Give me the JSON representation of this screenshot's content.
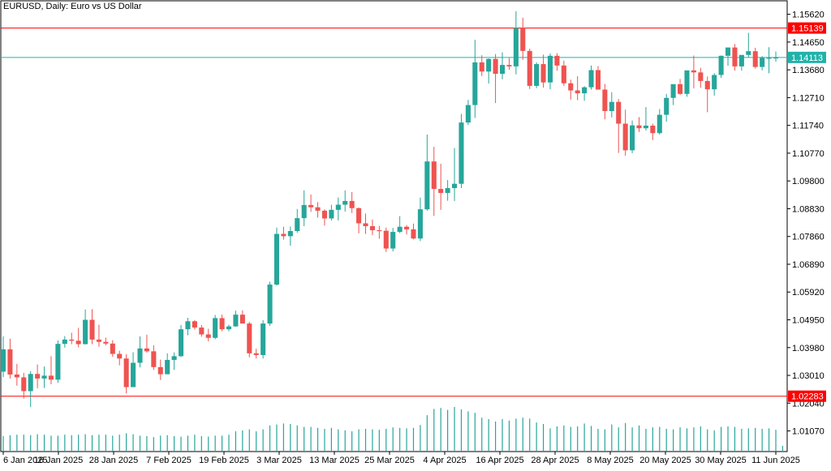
{
  "chart_data": {
    "type": "candlestick",
    "title": "EURUSD, Daily:  Euro vs US Dollar",
    "price_axis": {
      "ticks": [
        "1.15620",
        "1.14650",
        "1.13680",
        "1.12710",
        "1.11740",
        "1.10770",
        "1.09800",
        "1.08830",
        "1.07860",
        "1.06890",
        "1.05920",
        "1.04950",
        "1.03980",
        "1.03010",
        "1.02040",
        "1.01070"
      ],
      "range": [
        1.0035,
        1.1609
      ]
    },
    "date_axis": {
      "labels": [
        "6 Jan 2025",
        "16 Jan 2025",
        "28 Jan 2025",
        "7 Feb 2025",
        "19 Feb 2025",
        "3 Mar 2025",
        "13 Mar 2025",
        "25 Mar 2025",
        "4 Apr 2025",
        "16 Apr 2025",
        "28 Apr 2025",
        "8 May 2025",
        "20 May 2025",
        "30 May 2025",
        "11 Jun 2025"
      ]
    },
    "levels": [
      {
        "label": "1.15139",
        "value": 1.15139,
        "color": "#ff0000"
      },
      {
        "label": "1.14113",
        "value": 1.14113,
        "color": "#20b2aa"
      },
      {
        "label": "1.02283",
        "value": 1.02283,
        "color": "#ff0000"
      }
    ],
    "colors": {
      "up": "#26a69a",
      "down": "#ef5350",
      "volume": "#26a69a",
      "axis": "#000000"
    },
    "candles": [
      [
        1.0314,
        1.0437,
        1.0295,
        1.0392
      ],
      [
        1.0392,
        1.0429,
        1.029,
        1.0304
      ],
      [
        1.0304,
        1.0341,
        1.0265,
        1.0294
      ],
      [
        1.0294,
        1.031,
        1.022,
        1.0246
      ],
      [
        1.0246,
        1.0316,
        1.019,
        1.0306
      ],
      [
        1.0306,
        1.0339,
        1.0256,
        1.029
      ],
      [
        1.029,
        1.0332,
        1.0257,
        1.03
      ],
      [
        1.03,
        1.0368,
        1.027,
        1.0286
      ],
      [
        1.0286,
        1.0423,
        1.0275,
        1.0411
      ],
      [
        1.0411,
        1.0438,
        1.0398,
        1.0426
      ],
      [
        1.0426,
        1.045,
        1.041,
        1.0422
      ],
      [
        1.0422,
        1.0467,
        1.0399,
        1.041
      ],
      [
        1.041,
        1.0531,
        1.0409,
        1.0495
      ],
      [
        1.0495,
        1.0532,
        1.041,
        1.0426
      ],
      [
        1.0426,
        1.0478,
        1.0401,
        1.0418
      ],
      [
        1.0418,
        1.0433,
        1.0406,
        1.0412
      ],
      [
        1.0412,
        1.0424,
        1.0366,
        1.0376
      ],
      [
        1.0376,
        1.0387,
        1.0336,
        1.036
      ],
      [
        1.036,
        1.0375,
        1.0238,
        1.026
      ],
      [
        1.026,
        1.0382,
        1.026,
        1.0345
      ],
      [
        1.0345,
        1.0437,
        1.0329,
        1.0395
      ],
      [
        1.0395,
        1.0443,
        1.038,
        1.0385
      ],
      [
        1.0385,
        1.0406,
        1.032,
        1.033
      ],
      [
        1.033,
        1.0356,
        1.0285,
        1.0305
      ],
      [
        1.0305,
        1.0378,
        1.0305,
        1.0355
      ],
      [
        1.0355,
        1.0381,
        1.032,
        1.0368
      ],
      [
        1.0368,
        1.0477,
        1.0365,
        1.0462
      ],
      [
        1.0462,
        1.0502,
        1.0441,
        1.049
      ],
      [
        1.049,
        1.0494,
        1.0461,
        1.0468
      ],
      [
        1.0468,
        1.0477,
        1.0436,
        1.0444
      ],
      [
        1.0444,
        1.0464,
        1.042,
        1.0432
      ],
      [
        1.0432,
        1.0512,
        1.0427,
        1.0501
      ],
      [
        1.0501,
        1.0513,
        1.0455,
        1.0462
      ],
      [
        1.0462,
        1.0478,
        1.0455,
        1.0472
      ],
      [
        1.0472,
        1.0527,
        1.0471,
        1.0513
      ],
      [
        1.0513,
        1.0528,
        1.0482,
        1.0482
      ],
      [
        1.0482,
        1.0488,
        1.0364,
        1.0378
      ],
      [
        1.0378,
        1.0394,
        1.036,
        1.0372
      ],
      [
        1.0372,
        1.0494,
        1.036,
        1.0482
      ],
      [
        1.0482,
        1.0628,
        1.0474,
        1.0618
      ],
      [
        1.0618,
        1.0817,
        1.0614,
        1.0795
      ],
      [
        1.0795,
        1.082,
        1.0775,
        1.0787
      ],
      [
        1.0787,
        1.0821,
        1.0754,
        1.0805
      ],
      [
        1.0805,
        1.0882,
        1.0799,
        1.085
      ],
      [
        1.085,
        1.0947,
        1.0822,
        1.0896
      ],
      [
        1.0896,
        1.0933,
        1.0872,
        1.0888
      ],
      [
        1.0888,
        1.0906,
        1.0852,
        1.0876
      ],
      [
        1.0876,
        1.0881,
        1.0824,
        1.0849
      ],
      [
        1.0849,
        1.0897,
        1.0842,
        1.0879
      ],
      [
        1.0879,
        1.0922,
        1.0842,
        1.0897
      ],
      [
        1.0897,
        1.0947,
        1.0873,
        1.091
      ],
      [
        1.091,
        1.0941,
        1.0868,
        1.0885
      ],
      [
        1.0885,
        1.0887,
        1.0797,
        1.0832
      ],
      [
        1.0832,
        1.0866,
        1.0795,
        1.0822
      ],
      [
        1.0822,
        1.0845,
        1.0791,
        1.0808
      ],
      [
        1.0808,
        1.0823,
        1.0778,
        1.0806
      ],
      [
        1.0806,
        1.0817,
        1.0732,
        1.0744
      ],
      [
        1.0744,
        1.0816,
        1.0734,
        1.0802
      ],
      [
        1.0802,
        1.0857,
        1.0798,
        1.082
      ],
      [
        1.082,
        1.0826,
        1.0793,
        1.0811
      ],
      [
        1.0811,
        1.0831,
        1.0776,
        1.0779
      ],
      [
        1.0779,
        1.0922,
        1.077,
        1.0881
      ],
      [
        1.0881,
        1.1142,
        1.0876,
        1.1048
      ],
      [
        1.1048,
        1.1099,
        1.0858,
        1.0952
      ],
      [
        1.0952,
        1.104,
        1.0879,
        1.0938
      ],
      [
        1.0938,
        1.0983,
        1.0911,
        1.0955
      ],
      [
        1.0955,
        1.1095,
        1.091,
        1.097
      ],
      [
        1.097,
        1.1214,
        1.0955,
        1.1184
      ],
      [
        1.1184,
        1.1263,
        1.1175,
        1.1245
      ],
      [
        1.1245,
        1.1473,
        1.12,
        1.1394
      ],
      [
        1.1394,
        1.1419,
        1.1346,
        1.1362
      ],
      [
        1.1362,
        1.1408,
        1.132,
        1.1406
      ],
      [
        1.1406,
        1.1423,
        1.1252,
        1.1354
      ],
      [
        1.1354,
        1.1429,
        1.1335,
        1.1385
      ],
      [
        1.1385,
        1.1409,
        1.1368,
        1.138
      ],
      [
        1.138,
        1.1573,
        1.1352,
        1.1514
      ],
      [
        1.1514,
        1.155,
        1.1403,
        1.1434
      ],
      [
        1.1434,
        1.1442,
        1.1301,
        1.1312
      ],
      [
        1.1312,
        1.1394,
        1.1304,
        1.1388
      ],
      [
        1.1388,
        1.1421,
        1.1306,
        1.1324
      ],
      [
        1.1324,
        1.1425,
        1.13,
        1.1417
      ],
      [
        1.1417,
        1.1426,
        1.1365,
        1.1383
      ],
      [
        1.1383,
        1.14,
        1.1312,
        1.1321
      ],
      [
        1.1321,
        1.1334,
        1.1264,
        1.1296
      ],
      [
        1.1296,
        1.1346,
        1.1262,
        1.1286
      ],
      [
        1.1286,
        1.1311,
        1.126,
        1.1307
      ],
      [
        1.1307,
        1.1383,
        1.1299,
        1.1367
      ],
      [
        1.1367,
        1.1381,
        1.1301,
        1.1299
      ],
      [
        1.1299,
        1.1319,
        1.1195,
        1.1224
      ],
      [
        1.1224,
        1.129,
        1.1202,
        1.1256
      ],
      [
        1.1256,
        1.1266,
        1.1078,
        1.118
      ],
      [
        1.118,
        1.1229,
        1.1068,
        1.1087
      ],
      [
        1.1087,
        1.1191,
        1.1077,
        1.1174
      ],
      [
        1.1174,
        1.1203,
        1.1151,
        1.1164
      ],
      [
        1.1164,
        1.1238,
        1.1156,
        1.1173
      ],
      [
        1.1173,
        1.118,
        1.1123,
        1.1147
      ],
      [
        1.1147,
        1.1231,
        1.1142,
        1.1211
      ],
      [
        1.1211,
        1.1284,
        1.1187,
        1.127
      ],
      [
        1.127,
        1.1311,
        1.1245,
        1.1318
      ],
      [
        1.1318,
        1.1336,
        1.128,
        1.1284
      ],
      [
        1.1284,
        1.1358,
        1.1274,
        1.1366
      ],
      [
        1.1366,
        1.1418,
        1.1303,
        1.1359
      ],
      [
        1.1359,
        1.1375,
        1.1305,
        1.1329
      ],
      [
        1.1329,
        1.1345,
        1.122,
        1.13
      ],
      [
        1.13,
        1.1356,
        1.1278,
        1.135
      ],
      [
        1.135,
        1.1418,
        1.134,
        1.1417
      ],
      [
        1.1417,
        1.1446,
        1.1382,
        1.1446
      ],
      [
        1.1446,
        1.1458,
        1.1365,
        1.138
      ],
      [
        1.138,
        1.1417,
        1.1365,
        1.142
      ],
      [
        1.142,
        1.1497,
        1.1412,
        1.1433
      ],
      [
        1.1433,
        1.1445,
        1.1372,
        1.1378
      ],
      [
        1.1378,
        1.1416,
        1.1366,
        1.141
      ],
      [
        1.141,
        1.1447,
        1.1356,
        1.141
      ],
      [
        1.141,
        1.1432,
        1.1396,
        1.1411
      ]
    ],
    "volume": [
      0.3,
      0.32,
      0.33,
      0.33,
      0.32,
      0.34,
      0.33,
      0.31,
      0.31,
      0.33,
      0.32,
      0.33,
      0.34,
      0.32,
      0.33,
      0.33,
      0.31,
      0.33,
      0.36,
      0.34,
      0.31,
      0.3,
      0.28,
      0.31,
      0.32,
      0.3,
      0.29,
      0.31,
      0.33,
      0.3,
      0.29,
      0.31,
      0.31,
      0.33,
      0.4,
      0.42,
      0.44,
      0.4,
      0.44,
      0.52,
      0.54,
      0.56,
      0.55,
      0.52,
      0.49,
      0.49,
      0.47,
      0.45,
      0.47,
      0.44,
      0.42,
      0.4,
      0.44,
      0.45,
      0.44,
      0.43,
      0.45,
      0.48,
      0.47,
      0.46,
      0.47,
      0.53,
      0.73,
      0.86,
      0.88,
      0.84,
      0.9,
      0.85,
      0.81,
      0.78,
      0.68,
      0.65,
      0.6,
      0.65,
      0.62,
      0.66,
      0.68,
      0.66,
      0.58,
      0.55,
      0.46,
      0.5,
      0.52,
      0.49,
      0.5,
      0.56,
      0.51,
      0.45,
      0.44,
      0.54,
      0.48,
      0.57,
      0.48,
      0.52,
      0.45,
      0.48,
      0.49,
      0.45,
      0.44,
      0.48,
      0.46,
      0.48,
      0.5,
      0.44,
      0.42,
      0.49,
      0.5,
      0.49,
      0.45,
      0.46,
      0.47,
      0.45,
      0.46,
      0.43,
      0.1
    ]
  }
}
